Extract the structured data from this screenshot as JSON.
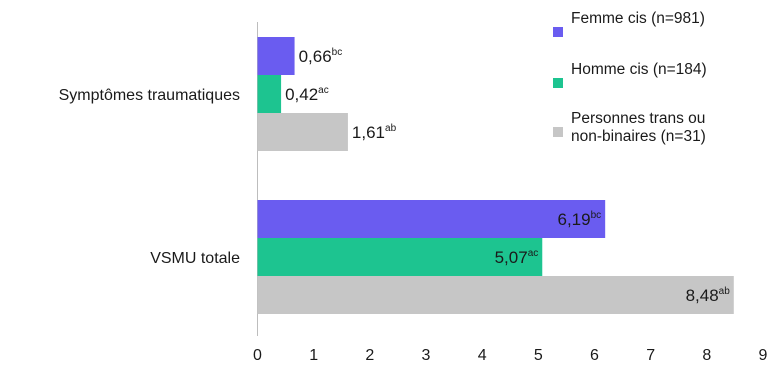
{
  "chart_data": {
    "type": "bar",
    "orientation": "horizontal",
    "title": "",
    "xlabel": "",
    "ylabel": "",
    "xlim": [
      0,
      9
    ],
    "xticks": [
      0,
      1,
      2,
      3,
      4,
      5,
      6,
      7,
      8,
      9
    ],
    "grid": false,
    "legend_position": "top-right",
    "categories": [
      "Symptômes traumatiques",
      "VSMU totale"
    ],
    "series": [
      {
        "name": "Femme cis (n=981)",
        "color": "#6a5cf0",
        "values": [
          0.66,
          6.19
        ],
        "labels": [
          "0,66",
          "6,19"
        ],
        "superscripts": [
          "bc",
          "bc"
        ]
      },
      {
        "name": "Homme cis (n=184)",
        "color": "#1dc490",
        "values": [
          0.42,
          5.07
        ],
        "labels": [
          "0,42",
          "5,07"
        ],
        "superscripts": [
          "ac",
          "ac"
        ]
      },
      {
        "name": "Personnes trans ou non-binaires (n=31)",
        "legend_lines": [
          "Personnes trans ou",
          "non-binaires (n=31)"
        ],
        "color": "#c6c6c6",
        "values": [
          1.61,
          8.48
        ],
        "labels": [
          "1,61",
          "8,48"
        ],
        "superscripts": [
          "ab",
          "ab"
        ]
      }
    ]
  }
}
